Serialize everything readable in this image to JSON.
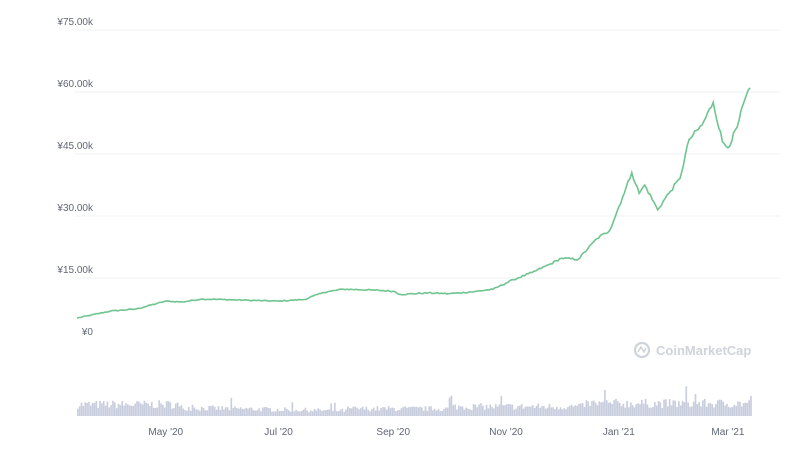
{
  "chart_data": {
    "type": "line",
    "price_series": {
      "color": "#6fc48f",
      "x": [
        "2020-03-14",
        "2020-04-01",
        "2020-04-15",
        "2020-05-01",
        "2020-05-10",
        "2020-05-20",
        "2020-06-01",
        "2020-06-15",
        "2020-07-01",
        "2020-07-15",
        "2020-07-25",
        "2020-08-05",
        "2020-08-20",
        "2020-09-01",
        "2020-09-05",
        "2020-09-20",
        "2020-10-01",
        "2020-10-15",
        "2020-10-25",
        "2020-11-05",
        "2020-11-15",
        "2020-11-25",
        "2020-12-01",
        "2020-12-10",
        "2020-12-20",
        "2020-12-27",
        "2021-01-03",
        "2021-01-08",
        "2021-01-12",
        "2021-01-15",
        "2021-01-22",
        "2021-01-28",
        "2021-02-03",
        "2021-02-08",
        "2021-02-15",
        "2021-02-21",
        "2021-02-26",
        "2021-03-01",
        "2021-03-06",
        "2021-03-10",
        "2021-03-13"
      ],
      "y": [
        5.3,
        7.0,
        7.5,
        9.4,
        9.2,
        9.9,
        9.8,
        9.6,
        9.4,
        9.8,
        11.5,
        12.3,
        12.1,
        11.8,
        11.0,
        11.4,
        11.2,
        11.7,
        12.3,
        14.6,
        16.3,
        18.4,
        19.8,
        19.5,
        24.5,
        26.5,
        34.5,
        40.5,
        35.5,
        37.5,
        31.5,
        35.5,
        39.0,
        48.5,
        52.0,
        57.5,
        48.0,
        46.5,
        51.5,
        58.0,
        61.0
      ]
    },
    "volume_series": {
      "color": "#c9cede",
      "points": 365,
      "seed": 7
    },
    "y_ticks": [
      "¥75.00k",
      "¥60.00k",
      "¥45.00k",
      "¥30.00k",
      "¥15.00k",
      "¥0"
    ],
    "y_tick_values": [
      75,
      60,
      45,
      30,
      15,
      0
    ],
    "ylim": [
      0,
      75
    ],
    "x_ticks": [
      "May '20",
      "Jul '20",
      "Sep '20",
      "Nov '20",
      "Jan '21",
      "Mar '21"
    ],
    "x_tick_dates": [
      "2020-05-01",
      "2020-07-01",
      "2020-09-01",
      "2020-11-01",
      "2021-01-01",
      "2021-03-01"
    ],
    "xlim": [
      "2020-03-14",
      "2021-03-14"
    ],
    "grid": true,
    "watermark": "CoinMarketCap"
  }
}
